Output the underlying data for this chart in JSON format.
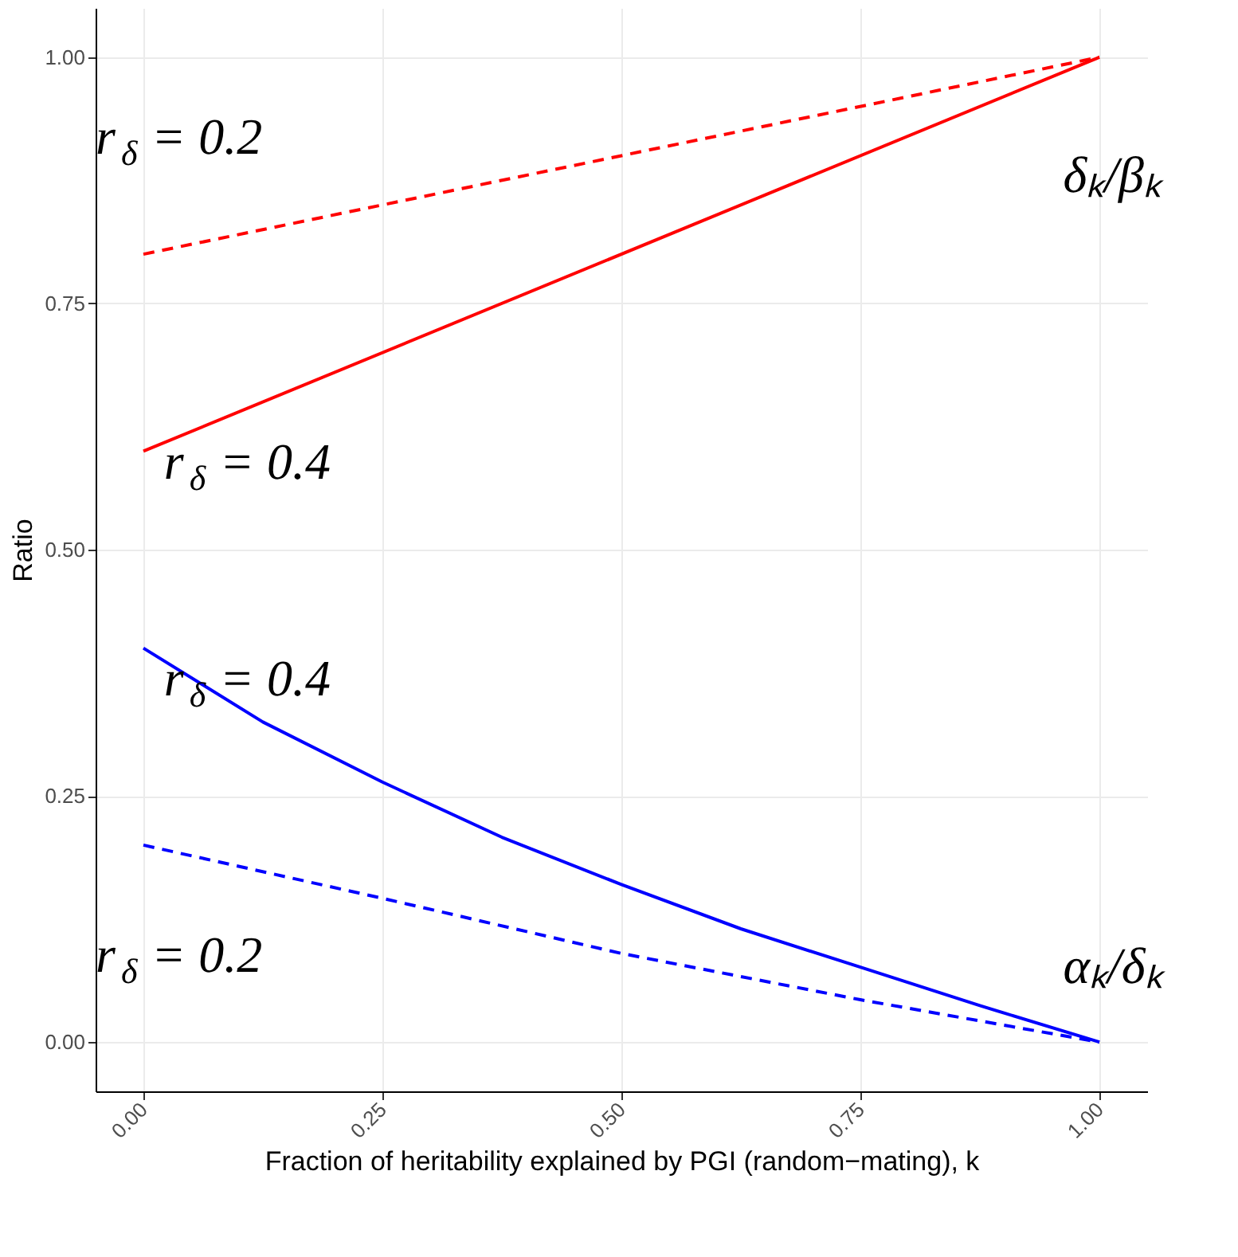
{
  "chart_data": {
    "type": "line",
    "xlabel": "Fraction of heritability explained by PGI (random−mating), k",
    "ylabel": "Ratio",
    "xlim": [
      -0.05,
      1.05
    ],
    "ylim": [
      -0.05,
      1.05
    ],
    "xticks": [
      {
        "value": 0,
        "label": "0.00"
      },
      {
        "value": 0.25,
        "label": "0.25"
      },
      {
        "value": 0.5,
        "label": "0.50"
      },
      {
        "value": 0.75,
        "label": "0.75"
      },
      {
        "value": 1,
        "label": "1.00"
      }
    ],
    "yticks": [
      {
        "value": 0,
        "label": "0.00"
      },
      {
        "value": 0.25,
        "label": "0.25"
      },
      {
        "value": 0.5,
        "label": "0.50"
      },
      {
        "value": 0.75,
        "label": "0.75"
      },
      {
        "value": 1,
        "label": "1.00"
      }
    ],
    "grid": true,
    "series": [
      {
        "color": "#ff0000",
        "line_style": "dashed",
        "x": [
          0,
          1
        ],
        "values": [
          0.8,
          1.0
        ]
      },
      {
        "color": "#ff0000",
        "line_style": "solid",
        "x": [
          0,
          1
        ],
        "values": [
          0.6,
          1.0
        ]
      },
      {
        "color": "#0000ff",
        "line_style": "solid",
        "x": [
          0,
          0.125,
          0.25,
          0.375,
          0.5,
          0.625,
          0.75,
          0.875,
          1
        ],
        "values": [
          0.4,
          0.325,
          0.264,
          0.208,
          0.16,
          0.115,
          0.076,
          0.037,
          0.0
        ]
      },
      {
        "color": "#0000ff",
        "line_style": "dashed",
        "x": [
          0,
          0.25,
          0.5,
          0.75,
          1
        ],
        "values": [
          0.2,
          0.146,
          0.09,
          0.043,
          0.0
        ]
      }
    ],
    "annotations": [
      "r$_{δ}$ = 0.2",
      "r$_{δ}$ = 0.4",
      "r$_{δ}$ = 0.4",
      "r$_{δ}$ = 0.2",
      "δₖ/βₖ",
      "αₖ/δₖ"
    ]
  }
}
